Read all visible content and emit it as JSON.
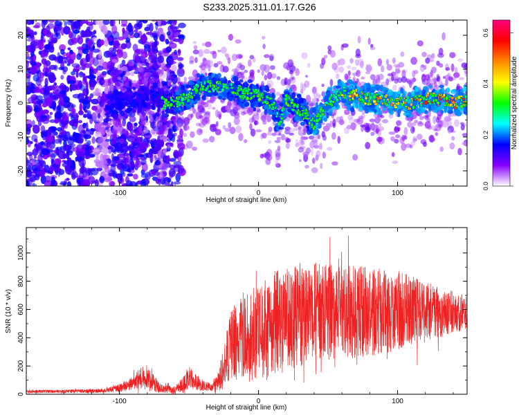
{
  "title": "S233.2025.311.01.17.G26",
  "chart_data": [
    {
      "type": "heatmap",
      "xlabel": "Height of straight line (km)",
      "ylabel": "Frequency (Hz)",
      "xlim": [
        -167,
        150
      ],
      "ylim": [
        -24.5,
        24.5
      ],
      "xticks": [
        -100,
        0,
        100
      ],
      "yticks": [
        -20,
        -10,
        0,
        10,
        20
      ],
      "colorbar": {
        "label": "Normalized spectral amplitude",
        "range": [
          0,
          0.65
        ],
        "ticks": [
          "0.0",
          "0.2",
          "0.4",
          "0.6"
        ],
        "colormap": [
          "#ffffff",
          "#8800ff",
          "#0000ff",
          "#00ffff",
          "#00ff00",
          "#ffff00",
          "#ff8800",
          "#ff0000",
          "#ff0080"
        ]
      },
      "ridge_centerline": {
        "x": [
          -110,
          -100,
          -90,
          -80,
          -70,
          -60,
          -50,
          -40,
          -30,
          -20,
          -10,
          0,
          10,
          15,
          20,
          30,
          40,
          50,
          60,
          70,
          80,
          90,
          100,
          110,
          120,
          130,
          140,
          150
        ],
        "y": [
          -2,
          0,
          1,
          2,
          0,
          0,
          2,
          5,
          5,
          4,
          3,
          2,
          0,
          -6,
          1,
          -2,
          -6,
          0,
          3,
          2,
          1,
          1,
          0,
          0,
          1,
          1,
          0,
          1
        ]
      },
      "noise_region_x": [
        -167,
        -60
      ]
    },
    {
      "type": "line",
      "xlabel": "Height of straight line (km)",
      "ylabel": "SNR (10 * v/v)",
      "xlim": [
        -167,
        150
      ],
      "ylim": [
        0,
        1180
      ],
      "xticks": [
        -100,
        0,
        100
      ],
      "yticks": [
        0,
        200,
        400,
        600,
        800,
        1000
      ],
      "color": "#ee2222",
      "envelope": {
        "x": [
          -167,
          -140,
          -110,
          -100,
          -90,
          -85,
          -80,
          -75,
          -70,
          -60,
          -55,
          -50,
          -45,
          -40,
          -35,
          -30,
          -25,
          -20,
          -15,
          -10,
          -5,
          0,
          5,
          10,
          15,
          20,
          30,
          40,
          50,
          60,
          70,
          80,
          90,
          100,
          110,
          120,
          130,
          140,
          150
        ],
        "center": [
          20,
          20,
          25,
          45,
          80,
          120,
          110,
          70,
          40,
          30,
          70,
          120,
          90,
          60,
          50,
          70,
          180,
          330,
          380,
          400,
          420,
          440,
          460,
          500,
          520,
          540,
          560,
          580,
          580,
          580,
          580,
          580,
          580,
          590,
          590,
          580,
          580,
          580,
          580
        ],
        "amplitude": [
          12,
          12,
          15,
          30,
          50,
          80,
          80,
          60,
          30,
          25,
          60,
          80,
          60,
          40,
          30,
          60,
          160,
          250,
          300,
          330,
          330,
          320,
          350,
          360,
          380,
          380,
          380,
          360,
          340,
          330,
          330,
          330,
          300,
          280,
          250,
          220,
          180,
          150,
          120
        ]
      }
    }
  ]
}
